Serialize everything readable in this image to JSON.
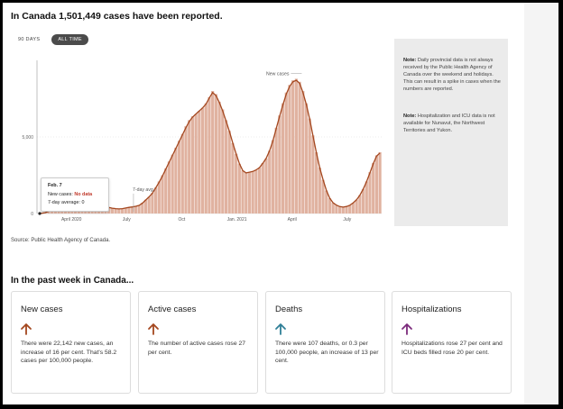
{
  "headline": "In Canada 1,501,449 cases have been reported.",
  "toggles": {
    "days90": "90 DAYS",
    "alltime": "ALL TIME"
  },
  "chart_data": {
    "type": "bar",
    "title": "",
    "xlabel": "",
    "ylabel": "",
    "y_tick_labels": [
      "0",
      "5,000"
    ],
    "x_tick_labels": [
      "April 2020",
      "July",
      "Oct",
      "Jan. 2021",
      "April",
      "July"
    ],
    "ylim": [
      0,
      10000
    ],
    "annotations": {
      "peak": "New cases",
      "avg": "7-day avg."
    },
    "series": [
      {
        "values": [
          0,
          20,
          60,
          150,
          400,
          700,
          1100,
          1450,
          1650,
          1750,
          1700,
          1750,
          1600,
          1500,
          1300,
          1200,
          1100,
          900,
          700,
          600,
          500,
          400,
          350,
          320,
          300,
          330,
          380,
          400,
          430,
          480,
          540,
          700,
          900,
          1100,
          1350,
          1700,
          2100,
          2500,
          2950,
          3400,
          3850,
          4300,
          4750,
          5200,
          5700,
          6100,
          6350,
          6500,
          6700,
          6900,
          7200,
          7600,
          8000,
          7800,
          7300,
          6800,
          6100,
          5400,
          4600,
          3900,
          3250,
          2800,
          2650,
          2700,
          2750,
          2850,
          3000,
          3300,
          3600,
          4100,
          4800,
          5600,
          6400,
          7200,
          7900,
          8400,
          8700,
          8800,
          8600,
          8000,
          7200,
          6200,
          5100,
          4000,
          3000,
          2200,
          1500,
          1000,
          700,
          550,
          450,
          420,
          460,
          540,
          700,
          900,
          1200,
          1600,
          2100,
          2700,
          3300,
          3800,
          4000
        ]
      },
      {
        "values": [
          0,
          20,
          60,
          150,
          380,
          680,
          1050,
          1400,
          1600,
          1700,
          1700,
          1700,
          1580,
          1480,
          1300,
          1180,
          1050,
          880,
          700,
          590,
          490,
          400,
          350,
          320,
          300,
          320,
          360,
          400,
          430,
          470,
          530,
          670,
          880,
          1080,
          1330,
          1680,
          2050,
          2450,
          2900,
          3350,
          3800,
          4250,
          4700,
          5150,
          5600,
          6000,
          6300,
          6500,
          6700,
          6900,
          7150,
          7550,
          7900,
          7700,
          7250,
          6700,
          6050,
          5350,
          4600,
          3900,
          3250,
          2800,
          2650,
          2700,
          2750,
          2850,
          3000,
          3280,
          3600,
          4100,
          4750,
          5550,
          6350,
          7100,
          7800,
          8300,
          8600,
          8700,
          8500,
          7900,
          7100,
          6150,
          5050,
          3950,
          2980,
          2200,
          1500,
          1000,
          700,
          550,
          450,
          420,
          460,
          540,
          700,
          900,
          1200,
          1600,
          2080,
          2650,
          3250,
          3750,
          3950
        ]
      }
    ]
  },
  "tooltip": {
    "date": "Feb. 7",
    "new_cases_label": "New cases: ",
    "new_cases_value": "No data",
    "avg": "7-day average: 0"
  },
  "notes": {
    "note1_label": "Note:",
    "note1_text": " Daily provincial data is not always received by the Public Health Agency of Canada over the weekend and holidays. This can result in a spike in cases when the numbers are reported.",
    "note2_label": "Note:",
    "note2_text": " Hospitalization and ICU data is not available for Nunavut, the Northwest Territories and Yukon."
  },
  "source": "Source: Public Health Agency of Canada.",
  "week_heading": "In the past week in Canada...",
  "cards": [
    {
      "title": "New cases",
      "icon": "arrow-up-icon",
      "color": "#a4471f",
      "text": "There were 22,142 new cases, an increase of 16 per cent. That's 58.2 cases per 100,000 people."
    },
    {
      "title": "Active cases",
      "icon": "arrow-up-icon",
      "color": "#a4471f",
      "text": "The number of active cases rose 27 per cent."
    },
    {
      "title": "Deaths",
      "icon": "arrow-up-icon",
      "color": "#2f7f97",
      "text": "There were 107 deaths, or 0.3 per 100,000 people, an increase of 13 per cent."
    },
    {
      "title": "Hospitalizations",
      "icon": "arrow-up-icon",
      "color": "#7c2b7c",
      "text": "Hospitalizations rose 27 per cent and ICU beds filled rose 20 per cent."
    }
  ],
  "colors": {
    "bar": "#e0b2a0",
    "line": "#a4471f",
    "grid": "#d9d9d9"
  }
}
